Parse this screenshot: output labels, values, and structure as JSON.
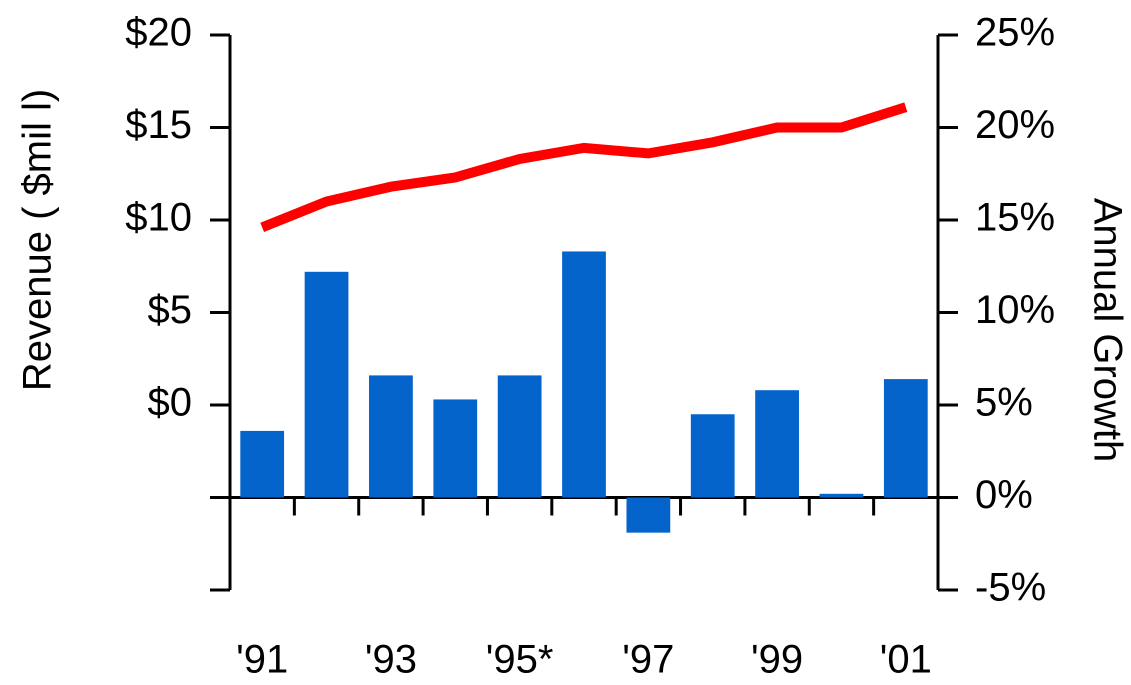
{
  "chart_data": {
    "type": "bar-line",
    "ylabel": "Revenue ( $mil l)",
    "y2label": "Annual Growth",
    "categories": [
      "'91",
      null,
      "'93",
      null,
      "'95*",
      null,
      "'97",
      null,
      "'99",
      null,
      "'01"
    ],
    "series": [
      {
        "type": "bar",
        "axis": "y2",
        "color": "#0563cc",
        "values": [
          3.6,
          12.2,
          6.6,
          5.3,
          6.6,
          13.3,
          -1.9,
          4.5,
          5.8,
          0.2,
          6.4
        ]
      },
      {
        "type": "line",
        "axis": "y",
        "color": "#ff0000",
        "values": [
          9.6,
          11.0,
          11.8,
          12.3,
          13.3,
          13.9,
          13.6,
          14.2,
          15.0,
          15.0,
          16.1
        ]
      }
    ],
    "ylim": [
      -10,
      20
    ],
    "yticks": [
      {
        "value": 0,
        "label": "$0"
      },
      {
        "value": 5,
        "label": "$5"
      },
      {
        "value": 10,
        "label": "$10"
      },
      {
        "value": 15,
        "label": "$15"
      },
      {
        "value": 20,
        "label": "$20"
      }
    ],
    "y2lim": [
      -5,
      25
    ],
    "y2ticks": [
      {
        "value": -5,
        "label": "-5%"
      },
      {
        "value": 0,
        "label": "0%"
      },
      {
        "value": 5,
        "label": "5%"
      },
      {
        "value": 10,
        "label": "10%"
      },
      {
        "value": 15,
        "label": "15%"
      },
      {
        "value": 20,
        "label": "20%"
      },
      {
        "value": 25,
        "label": "25%"
      }
    ]
  }
}
